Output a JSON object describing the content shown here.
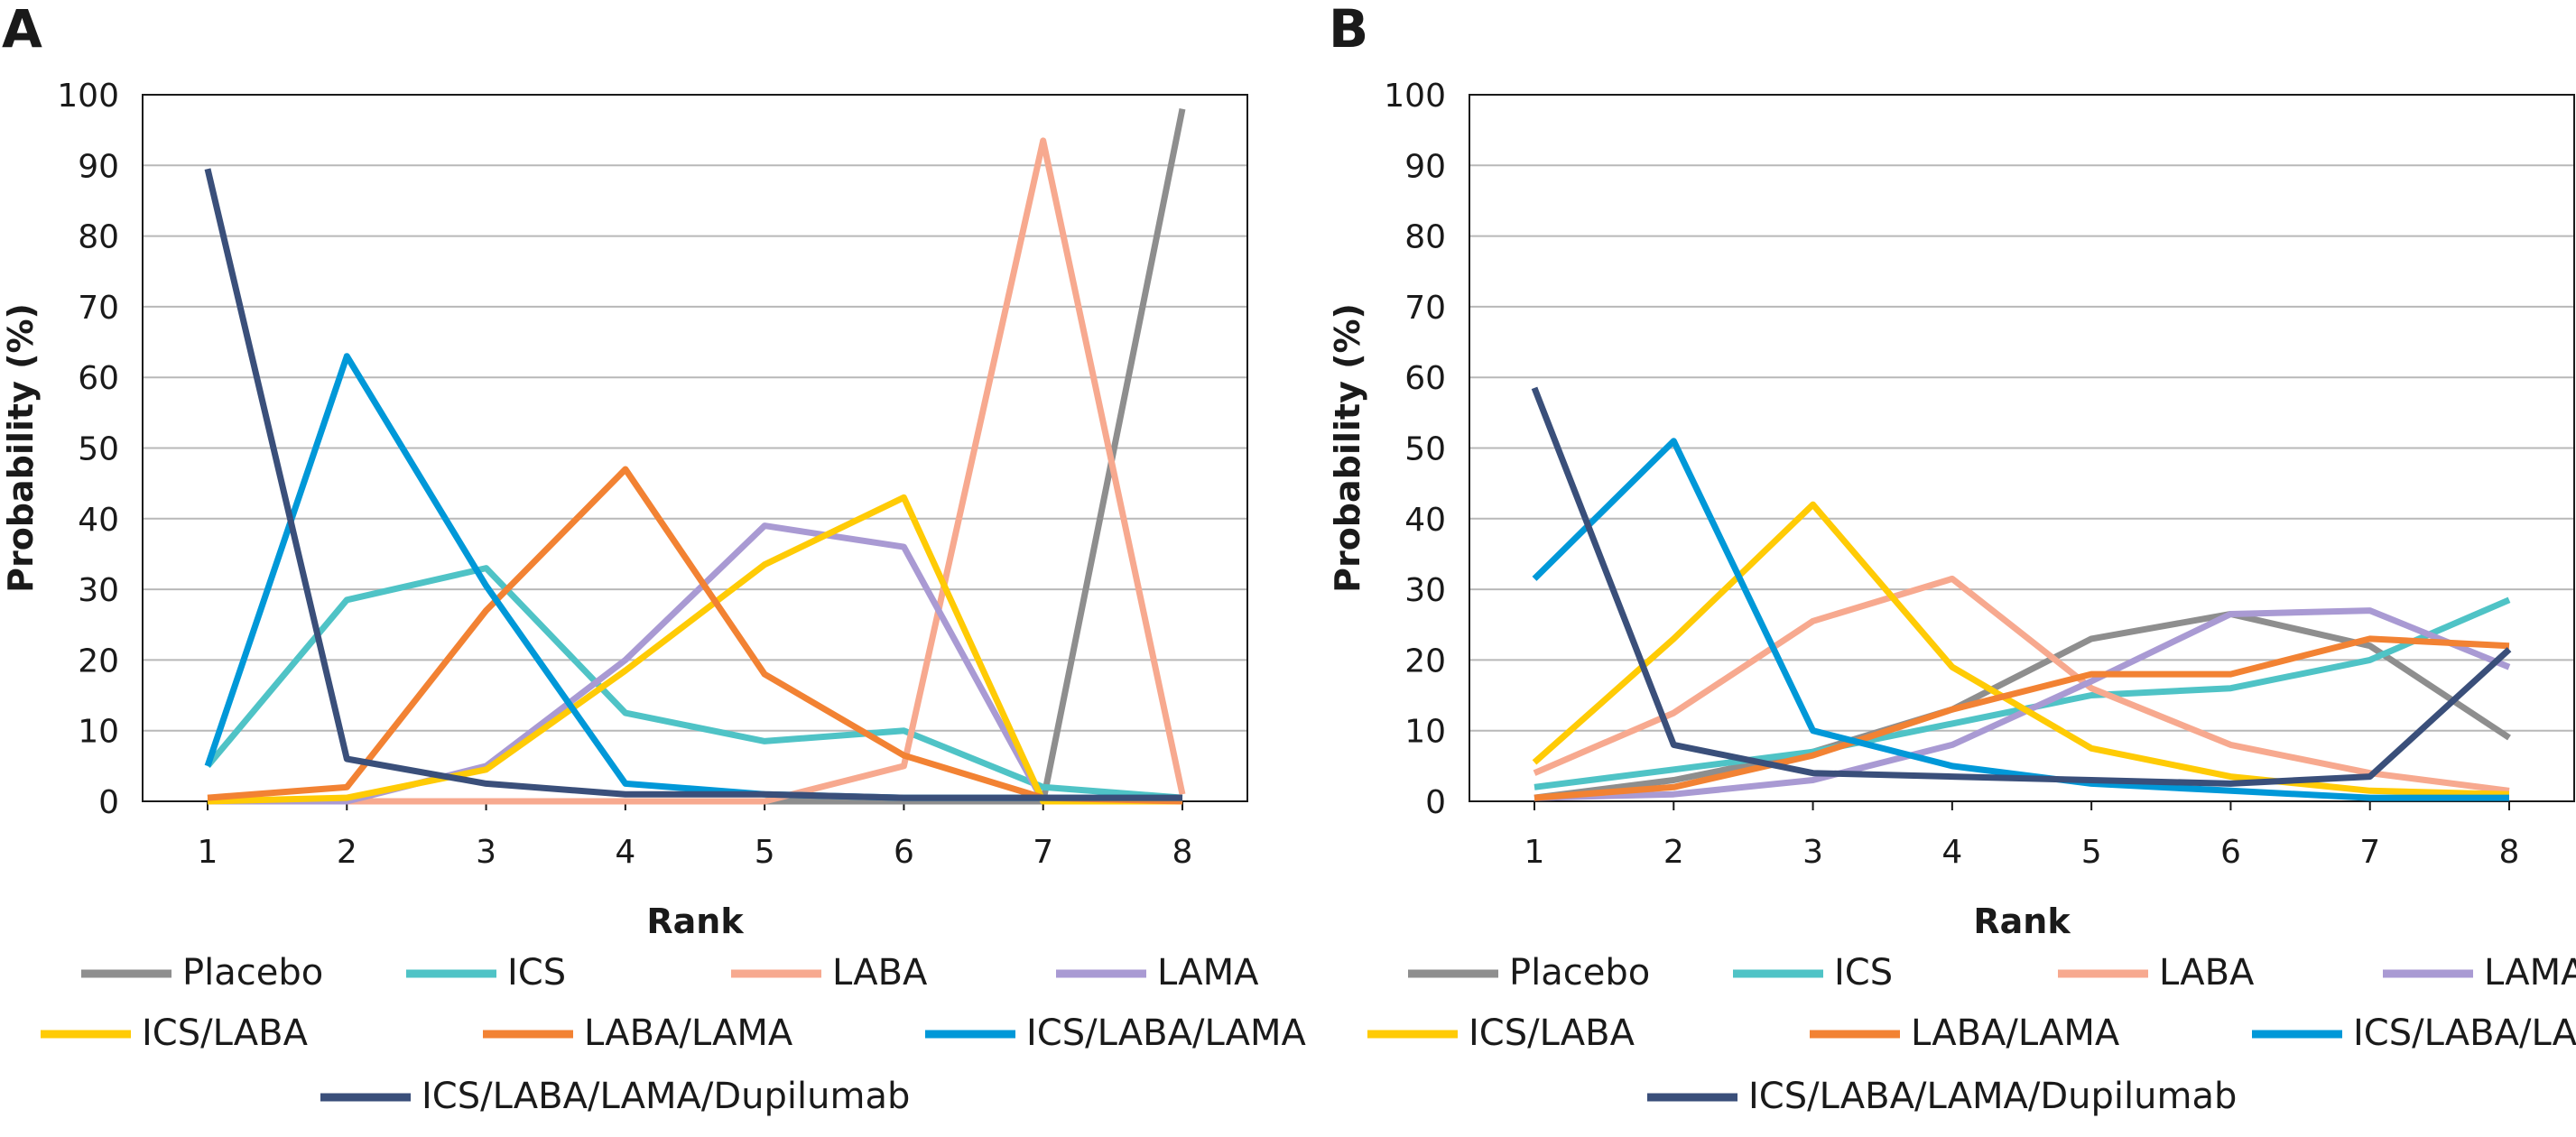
{
  "figure": {
    "panels": [
      "A",
      "B"
    ]
  },
  "legend": {
    "entries": [
      {
        "name": "Placebo",
        "color": "#8e8e8e"
      },
      {
        "name": "ICS",
        "color": "#4fc3c6"
      },
      {
        "name": "LABA",
        "color": "#f7a98f"
      },
      {
        "name": "LAMA",
        "color": "#a99ad3"
      },
      {
        "name": "ICS/LABA",
        "color": "#ffcb05"
      },
      {
        "name": "LABA/LAMA",
        "color": "#f28233"
      },
      {
        "name": "ICS/LABA/LAMA",
        "color": "#0098d8"
      },
      {
        "name": "ICS/LABA/LAMA/Dupilumab",
        "color": "#3a4f7a"
      }
    ]
  },
  "chart_data": [
    {
      "panel": "A",
      "type": "line",
      "xlabel": "Rank",
      "ylabel": "Probability (%)",
      "x": [
        1,
        2,
        3,
        4,
        5,
        6,
        7,
        8
      ],
      "ylim": [
        0,
        100
      ],
      "yticks": [
        0,
        10,
        20,
        30,
        40,
        50,
        60,
        70,
        80,
        90,
        100
      ],
      "grid": true,
      "legend_position": "bottom",
      "series": [
        {
          "name": "Placebo",
          "color": "#8e8e8e",
          "values": [
            0,
            0,
            0,
            0,
            0,
            0,
            0,
            98
          ]
        },
        {
          "name": "ICS",
          "color": "#4fc3c6",
          "values": [
            5,
            28.5,
            33,
            12.5,
            8.5,
            10,
            2,
            0.5
          ]
        },
        {
          "name": "LABA",
          "color": "#f7a98f",
          "values": [
            0,
            0,
            0,
            0,
            0,
            5,
            93.5,
            1
          ]
        },
        {
          "name": "LAMA",
          "color": "#a99ad3",
          "values": [
            0,
            0,
            5,
            20,
            39,
            36,
            0,
            0
          ]
        },
        {
          "name": "ICS/LABA",
          "color": "#ffcb05",
          "values": [
            0,
            0.5,
            4.5,
            18.5,
            33.5,
            43,
            0,
            0
          ]
        },
        {
          "name": "LABA/LAMA",
          "color": "#f28233",
          "values": [
            0.5,
            2,
            27,
            47,
            18,
            6.5,
            0.5,
            0
          ]
        },
        {
          "name": "ICS/LABA/LAMA",
          "color": "#0098d8",
          "values": [
            5,
            63,
            30.5,
            2.5,
            1,
            0.5,
            0.5,
            0.5
          ]
        },
        {
          "name": "ICS/LABA/LAMA/Dupilumab",
          "color": "#3a4f7a",
          "values": [
            89.5,
            6,
            2.5,
            1,
            1,
            0.5,
            0.5,
            0.5
          ]
        }
      ]
    },
    {
      "panel": "B",
      "type": "line",
      "xlabel": "Rank",
      "ylabel": "Probability (%)",
      "x": [
        1,
        2,
        3,
        4,
        5,
        6,
        7,
        8
      ],
      "ylim": [
        0,
        100
      ],
      "yticks": [
        0,
        10,
        20,
        30,
        40,
        50,
        60,
        70,
        80,
        90,
        100
      ],
      "grid": true,
      "legend_position": "bottom",
      "series": [
        {
          "name": "Placebo",
          "color": "#8e8e8e",
          "values": [
            0.5,
            3,
            7,
            13,
            23,
            26.5,
            22,
            9
          ]
        },
        {
          "name": "ICS",
          "color": "#4fc3c6",
          "values": [
            2,
            4.5,
            7,
            11,
            15,
            16,
            20,
            28.5
          ]
        },
        {
          "name": "LABA",
          "color": "#f7a98f",
          "values": [
            4,
            12.5,
            25.5,
            31.5,
            16,
            8,
            4,
            1.5
          ]
        },
        {
          "name": "LAMA",
          "color": "#a99ad3",
          "values": [
            0.5,
            1,
            3,
            8,
            17,
            26.5,
            27,
            19
          ]
        },
        {
          "name": "ICS/LABA",
          "color": "#ffcb05",
          "values": [
            5.5,
            23,
            42,
            19,
            7.5,
            3.5,
            1.5,
            1
          ]
        },
        {
          "name": "LABA/LAMA",
          "color": "#f28233",
          "values": [
            0.5,
            2,
            6.5,
            13,
            18,
            18,
            23,
            22
          ]
        },
        {
          "name": "ICS/LABA/LAMA",
          "color": "#0098d8",
          "values": [
            31.5,
            51,
            10,
            5,
            2.5,
            1.5,
            0.5,
            0.5
          ]
        },
        {
          "name": "ICS/LABA/LAMA/Dupilumab",
          "color": "#3a4f7a",
          "values": [
            58.5,
            8,
            4,
            3.5,
            3,
            2.5,
            3.5,
            21.5
          ]
        }
      ]
    }
  ]
}
